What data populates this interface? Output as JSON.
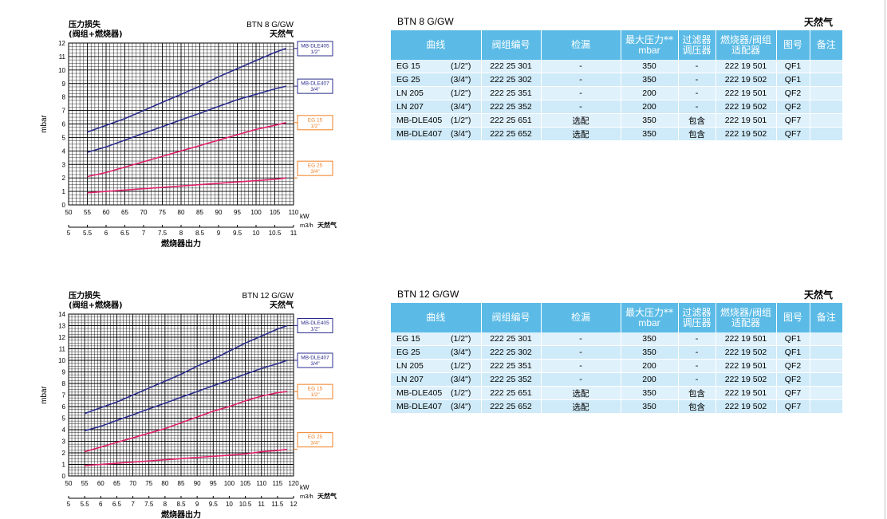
{
  "charts": [
    {
      "title": "压力损失",
      "subtitle": "(阀组+燃烧器)",
      "model": "BTN 8 G/GW",
      "gas": "天然气",
      "ylabel": "mbar",
      "xlabel_kw": "kW",
      "xlabel_m3h": "m3/h",
      "xlabel_gas": "天然气",
      "footer": "燃烧器出力",
      "ymax": 12,
      "kw_ticks": [
        "50",
        "55",
        "60",
        "65",
        "70",
        "75",
        "80",
        "85",
        "90",
        "95",
        "100",
        "105",
        "110"
      ],
      "m3h_ticks": [
        "5",
        "5.5",
        "6",
        "6.5",
        "7",
        "7.5",
        "8",
        "8.5",
        "9",
        "9.5",
        "10",
        "10.5",
        "11"
      ],
      "y_ticks": [
        "0",
        "1",
        "2",
        "3",
        "4",
        "5",
        "6",
        "7",
        "8",
        "9",
        "10",
        "11",
        "12"
      ],
      "legend": [
        {
          "l1": "MB-DLE405",
          "l2": "1/2\"",
          "color": "#2b2d8c"
        },
        {
          "l1": "MB-DLE407",
          "l2": "3/4\"",
          "color": "#2b2d8c"
        },
        {
          "l1": "EG 15",
          "l2": "1/2\"",
          "color": "#f07f24"
        },
        {
          "l1": "EG 25",
          "l2": "3/4\"",
          "color": "#f07f24"
        }
      ],
      "chart_data": {
        "type": "line",
        "x_unit": "kW",
        "y_unit": "mbar",
        "xlim": [
          50,
          110
        ],
        "ylim": [
          0,
          12
        ],
        "series": [
          {
            "name": "MB-DLE405 1/2\"",
            "color": "#2b2d8c",
            "x": [
              55,
              60,
              65,
              70,
              75,
              80,
              85,
              90,
              95,
              100,
              105,
              108
            ],
            "y": [
              5.4,
              5.9,
              6.4,
              7.0,
              7.6,
              8.2,
              8.8,
              9.5,
              10.1,
              10.7,
              11.3,
              11.6
            ]
          },
          {
            "name": "MB-DLE407 3/4\"",
            "color": "#2b2d8c",
            "x": [
              55,
              60,
              65,
              70,
              75,
              80,
              85,
              90,
              95,
              100,
              105,
              108
            ],
            "y": [
              3.9,
              4.3,
              4.8,
              5.3,
              5.8,
              6.3,
              6.8,
              7.3,
              7.8,
              8.2,
              8.6,
              8.8
            ]
          },
          {
            "name": "EG 15 1/2\"",
            "color": "#e0206a",
            "x": [
              55,
              60,
              65,
              70,
              75,
              80,
              85,
              90,
              95,
              100,
              105,
              108
            ],
            "y": [
              2.1,
              2.4,
              2.8,
              3.2,
              3.6,
              4.0,
              4.4,
              4.8,
              5.2,
              5.6,
              5.9,
              6.1
            ]
          },
          {
            "name": "EG 25 3/4\"",
            "color": "#e0206a",
            "x": [
              55,
              60,
              65,
              70,
              75,
              80,
              85,
              90,
              95,
              100,
              105,
              108
            ],
            "y": [
              0.9,
              1.0,
              1.1,
              1.2,
              1.3,
              1.4,
              1.5,
              1.6,
              1.7,
              1.8,
              1.9,
              2.0
            ]
          }
        ]
      }
    },
    {
      "title": "压力损失",
      "subtitle": "(阀组+燃烧器)",
      "model": "BTN 12 G/GW",
      "gas": "天然气",
      "ylabel": "mbar",
      "xlabel_kw": "kW",
      "xlabel_m3h": "m3/h",
      "xlabel_gas": "天然气",
      "footer": "燃烧器出力",
      "ymax": 14,
      "kw_ticks": [
        "50",
        "55",
        "60",
        "65",
        "70",
        "75",
        "80",
        "85",
        "90",
        "95",
        "100",
        "105",
        "110",
        "115",
        "120"
      ],
      "m3h_ticks": [
        "5",
        "5.5",
        "6",
        "6.5",
        "7",
        "7.5",
        "8",
        "8.5",
        "9",
        "9.5",
        "10",
        "10.5",
        "11",
        "11.5",
        "12"
      ],
      "y_ticks": [
        "0",
        "1",
        "2",
        "3",
        "4",
        "5",
        "6",
        "7",
        "8",
        "9",
        "10",
        "11",
        "12",
        "13",
        "14"
      ],
      "legend": [
        {
          "l1": "MB-DLE405",
          "l2": "1/2\"",
          "color": "#2b2d8c"
        },
        {
          "l1": "MB-DLE407",
          "l2": "3/4\"",
          "color": "#2b2d8c"
        },
        {
          "l1": "EG 15",
          "l2": "1/2\"",
          "color": "#f07f24"
        },
        {
          "l1": "EG 25",
          "l2": "3/4\"",
          "color": "#f07f24"
        }
      ],
      "chart_data": {
        "type": "line",
        "x_unit": "kW",
        "y_unit": "mbar",
        "xlim": [
          50,
          120
        ],
        "ylim": [
          0,
          14
        ],
        "series": [
          {
            "name": "MB-DLE405 1/2\"",
            "color": "#2b2d8c",
            "x": [
              55,
              60,
              65,
              70,
              75,
              80,
              85,
              90,
              95,
              100,
              105,
              110,
              115,
              118
            ],
            "y": [
              5.4,
              5.9,
              6.4,
              7.0,
              7.6,
              8.2,
              8.8,
              9.5,
              10.1,
              10.8,
              11.5,
              12.1,
              12.7,
              13.0
            ]
          },
          {
            "name": "MB-DLE407 3/4\"",
            "color": "#2b2d8c",
            "x": [
              55,
              60,
              65,
              70,
              75,
              80,
              85,
              90,
              95,
              100,
              105,
              110,
              115,
              118
            ],
            "y": [
              3.9,
              4.3,
              4.8,
              5.3,
              5.8,
              6.3,
              6.8,
              7.3,
              7.8,
              8.3,
              8.8,
              9.3,
              9.7,
              10.0
            ]
          },
          {
            "name": "EG 15 1/2\"",
            "color": "#e0206a",
            "x": [
              55,
              60,
              65,
              70,
              75,
              80,
              85,
              90,
              95,
              100,
              105,
              110,
              115,
              118
            ],
            "y": [
              2.1,
              2.5,
              2.9,
              3.3,
              3.7,
              4.1,
              4.6,
              5.1,
              5.6,
              6.0,
              6.5,
              6.9,
              7.2,
              7.3
            ]
          },
          {
            "name": "EG 25 3/4\"",
            "color": "#e0206a",
            "x": [
              55,
              60,
              65,
              70,
              75,
              80,
              85,
              90,
              95,
              100,
              105,
              110,
              115,
              118
            ],
            "y": [
              0.9,
              1.0,
              1.1,
              1.2,
              1.3,
              1.4,
              1.5,
              1.6,
              1.7,
              1.8,
              1.9,
              2.1,
              2.2,
              2.3
            ]
          }
        ]
      }
    }
  ],
  "tables": [
    {
      "model": "BTN 8 G/GW",
      "gas": "天然气",
      "headers": {
        "curve": "曲线",
        "valve": "阀组编号",
        "leak": "检漏",
        "pmax1": "最大压力**",
        "pmax2": "mbar",
        "filter1": "过滤器",
        "filter2": "调压器",
        "adapter1": "燃烧器/阀组",
        "adapter2": "适配器",
        "fig": "图号",
        "note": "备注"
      },
      "rows": [
        {
          "curve": "EG 15",
          "size": "(1/2\")",
          "valve": "222 25 301",
          "leak": "-",
          "pmax": "350",
          "filter": "-",
          "adapter": "222 19 501",
          "fig": "QF1",
          "note": ""
        },
        {
          "curve": "EG 25",
          "size": "(3/4\")",
          "valve": "222 25 302",
          "leak": "-",
          "pmax": "350",
          "filter": "-",
          "adapter": "222 19 502",
          "fig": "QF1",
          "note": ""
        },
        {
          "curve": "LN 205",
          "size": "(1/2\")",
          "valve": "222 25 351",
          "leak": "-",
          "pmax": "200",
          "filter": "-",
          "adapter": "222 19 501",
          "fig": "QF2",
          "note": ""
        },
        {
          "curve": "LN 207",
          "size": "(3/4\")",
          "valve": "222 25 352",
          "leak": "-",
          "pmax": "200",
          "filter": "-",
          "adapter": "222 19 502",
          "fig": "QF2",
          "note": ""
        },
        {
          "curve": "MB-DLE405",
          "size": "(1/2\")",
          "valve": "222 25 651",
          "leak": "选配",
          "pmax": "350",
          "filter": "包含",
          "adapter": "222 19 501",
          "fig": "QF7",
          "note": ""
        },
        {
          "curve": "MB-DLE407",
          "size": "(3/4\")",
          "valve": "222 25 652",
          "leak": "选配",
          "pmax": "350",
          "filter": "包含",
          "adapter": "222 19 502",
          "fig": "QF7",
          "note": ""
        }
      ]
    },
    {
      "model": "BTN 12 G/GW",
      "gas": "天然气",
      "headers": {
        "curve": "曲线",
        "valve": "阀组编号",
        "leak": "检漏",
        "pmax1": "最大压力**",
        "pmax2": "mbar",
        "filter1": "过滤器",
        "filter2": "调压器",
        "adapter1": "燃烧器/阀组",
        "adapter2": "适配器",
        "fig": "图号",
        "note": "备注"
      },
      "rows": [
        {
          "curve": "EG 15",
          "size": "(1/2\")",
          "valve": "222 25 301",
          "leak": "-",
          "pmax": "350",
          "filter": "-",
          "adapter": "222 19 501",
          "fig": "QF1",
          "note": ""
        },
        {
          "curve": "EG 25",
          "size": "(3/4\")",
          "valve": "222 25 302",
          "leak": "-",
          "pmax": "350",
          "filter": "-",
          "adapter": "222 19 502",
          "fig": "QF1",
          "note": ""
        },
        {
          "curve": "LN 205",
          "size": "(1/2\")",
          "valve": "222 25 351",
          "leak": "-",
          "pmax": "200",
          "filter": "-",
          "adapter": "222 19 501",
          "fig": "QF2",
          "note": ""
        },
        {
          "curve": "LN 207",
          "size": "(3/4\")",
          "valve": "222 25 352",
          "leak": "-",
          "pmax": "200",
          "filter": "-",
          "adapter": "222 19 502",
          "fig": "QF2",
          "note": ""
        },
        {
          "curve": "MB-DLE405",
          "size": "(1/2\")",
          "valve": "222 25 651",
          "leak": "选配",
          "pmax": "350",
          "filter": "包含",
          "adapter": "222 19 501",
          "fig": "QF7",
          "note": ""
        },
        {
          "curve": "MB-DLE407",
          "size": "(3/4\")",
          "valve": "222 25 652",
          "leak": "选配",
          "pmax": "350",
          "filter": "包含",
          "adapter": "222 19 502",
          "fig": "QF7",
          "note": ""
        }
      ]
    }
  ]
}
